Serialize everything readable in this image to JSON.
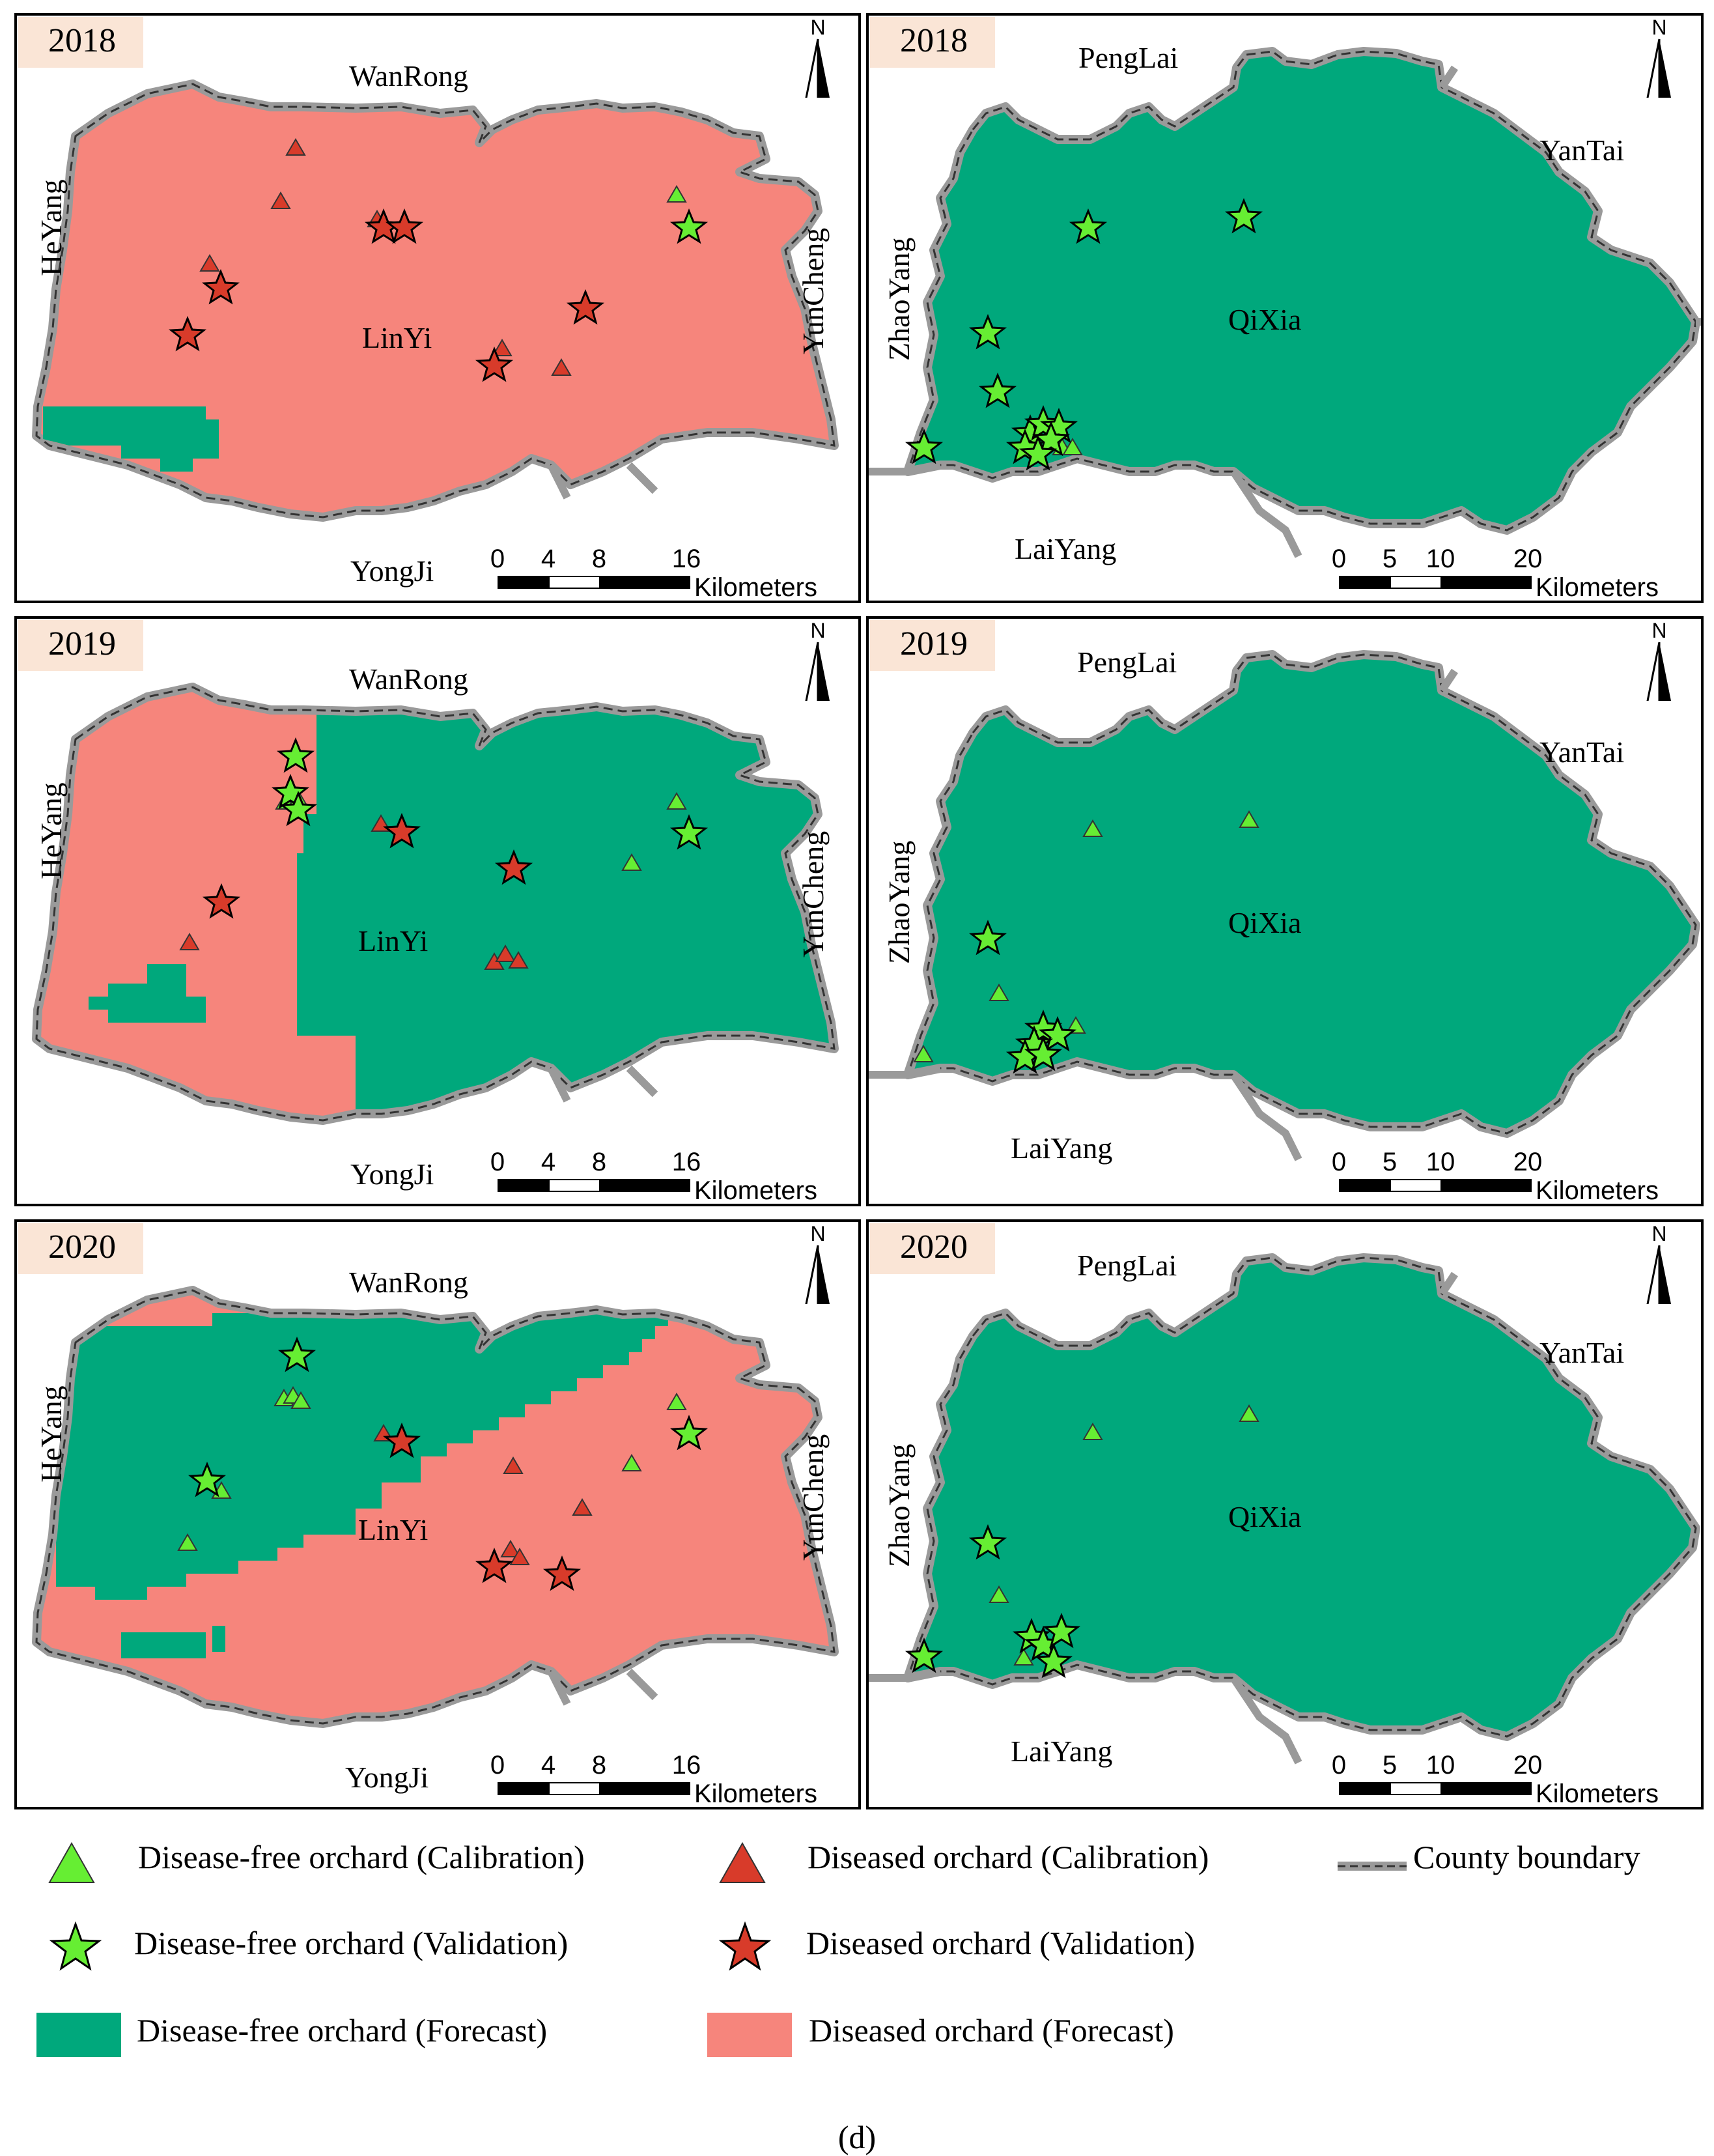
{
  "colors": {
    "diseased_forecast": "#f6857c",
    "disease_free_forecast": "#00a87c",
    "diseased_marker": "#d83b2a",
    "disease_free_marker": "#66ee33",
    "boundary": "#9a9a9a"
  },
  "panels": [
    {
      "year": "2018",
      "region": "LinYi",
      "neighbors": {
        "north": "WanRong",
        "west": "HeYang",
        "east": "YunCheng",
        "south": "YongJi"
      }
    },
    {
      "year": "2018",
      "region": "QiXia",
      "neighbors": {
        "north": "PengLai",
        "west": "ZhaoYang",
        "east": "YanTai",
        "south": "LaiYang"
      }
    },
    {
      "year": "2019",
      "region": "LinYi",
      "neighbors": {
        "north": "WanRong",
        "west": "HeYang",
        "east": "YunCheng",
        "south": "YongJi"
      }
    },
    {
      "year": "2019",
      "region": "QiXia",
      "neighbors": {
        "north": "PengLai",
        "west": "ZhaoYang",
        "east": "YanTai",
        "south": "LaiYang"
      }
    },
    {
      "year": "2020",
      "region": "LinYi",
      "neighbors": {
        "north": "WanRong",
        "west": "HeYang",
        "east": "YunCheng",
        "south": "YongJi"
      }
    },
    {
      "year": "2020",
      "region": "QiXia",
      "neighbors": {
        "north": "PengLai",
        "west": "ZhaoYang",
        "east": "YanTai",
        "south": "LaiYang"
      }
    }
  ],
  "north_label": "N",
  "scalebars": {
    "linyi": {
      "ticks": [
        "0",
        "4",
        "8",
        "16"
      ],
      "unit": "Kilometers"
    },
    "qixia": {
      "ticks": [
        "0",
        "5",
        "10",
        "20"
      ],
      "unit": "Kilometers"
    }
  },
  "legend": [
    {
      "symbol": "triangle-green",
      "label": "Disease-free orchard (Calibration)"
    },
    {
      "symbol": "triangle-red",
      "label": "Diseased orchard (Calibration)"
    },
    {
      "symbol": "boundary-line",
      "label": "County boundary"
    },
    {
      "symbol": "star-green",
      "label": "Disease-free orchard (Validation)"
    },
    {
      "symbol": "star-red",
      "label": "Diseased orchard (Validation)"
    },
    {
      "symbol": "swatch-green",
      "label": "Disease-free orchard (Forecast)"
    },
    {
      "symbol": "swatch-red",
      "label": "Diseased orchard (Forecast)"
    }
  ],
  "caption": "(d)"
}
